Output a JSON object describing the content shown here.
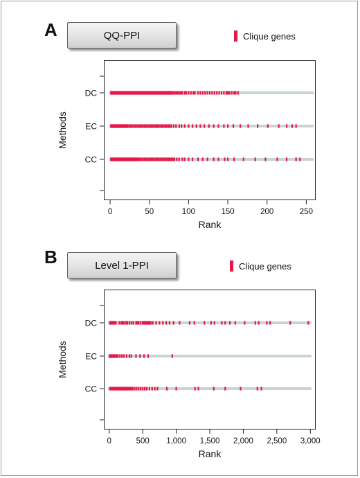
{
  "colors": {
    "clique_mark": "#e8174a",
    "track": "#c9d3d1",
    "axis": "#222222"
  },
  "legend_icon": "red-bar-swatch",
  "chart_data": [
    {
      "type": "scatter",
      "panel_label": "A",
      "title": "QQ-PPI",
      "legend_label": "Clique genes",
      "xlabel": "Rank",
      "ylabel": "Methods",
      "categories": [
        "DC",
        "EC",
        "CC"
      ],
      "xlim": [
        -8,
        262
      ],
      "xticks": [
        0,
        50,
        100,
        150,
        200,
        250
      ],
      "xtick_labels": [
        "0",
        "50",
        "100",
        "150",
        "200",
        "250"
      ],
      "track_range": [
        0,
        258
      ],
      "series": [
        {
          "name": "DC",
          "x": [
            1,
            2,
            3,
            4,
            5,
            6,
            7,
            8,
            9,
            10,
            11,
            12,
            13,
            14,
            15,
            16,
            17,
            18,
            19,
            20,
            21,
            22,
            23,
            24,
            25,
            26,
            27,
            28,
            29,
            30,
            31,
            32,
            33,
            34,
            35,
            36,
            37,
            38,
            39,
            40,
            41,
            42,
            43,
            44,
            45,
            46,
            47,
            48,
            49,
            50,
            51,
            52,
            53,
            54,
            55,
            56,
            57,
            58,
            59,
            60,
            61,
            62,
            63,
            64,
            65,
            66,
            67,
            68,
            69,
            70,
            71,
            72,
            73,
            74,
            75,
            76,
            77,
            78,
            80,
            82,
            84,
            86,
            88,
            90,
            92,
            95,
            97,
            100,
            103,
            106,
            108,
            112,
            115,
            118,
            121,
            124,
            127,
            130,
            133,
            136,
            139,
            142,
            145,
            148,
            150,
            152,
            155,
            158,
            160,
            163
          ]
        },
        {
          "name": "EC",
          "x": [
            1,
            2,
            3,
            4,
            5,
            6,
            7,
            8,
            9,
            10,
            11,
            12,
            13,
            14,
            15,
            16,
            17,
            18,
            19,
            20,
            21,
            22,
            24,
            26,
            28,
            30,
            32,
            34,
            36,
            38,
            40,
            42,
            44,
            46,
            48,
            50,
            52,
            54,
            56,
            58,
            60,
            62,
            64,
            66,
            68,
            70,
            72,
            74,
            76,
            78,
            81,
            84,
            88,
            91,
            95,
            100,
            105,
            110,
            115,
            120,
            126,
            132,
            138,
            145,
            150,
            157,
            166,
            176,
            188,
            201,
            215,
            225,
            232,
            237
          ]
        },
        {
          "name": "CC",
          "x": [
            1,
            2,
            3,
            4,
            5,
            6,
            7,
            8,
            9,
            10,
            11,
            12,
            13,
            14,
            15,
            16,
            17,
            18,
            19,
            20,
            21,
            22,
            23,
            24,
            25,
            26,
            27,
            28,
            29,
            30,
            31,
            32,
            33,
            34,
            35,
            36,
            38,
            40,
            42,
            44,
            46,
            48,
            50,
            52,
            54,
            56,
            58,
            60,
            62,
            64,
            66,
            68,
            70,
            72,
            74,
            76,
            78,
            80,
            82,
            85,
            88,
            92,
            95,
            100,
            105,
            112,
            118,
            124,
            132,
            138,
            146,
            150,
            158,
            170,
            185,
            198,
            213,
            225,
            237,
            242
          ]
        }
      ]
    },
    {
      "type": "scatter",
      "panel_label": "B",
      "title": "Level 1-PPI",
      "legend_label": "Clique genes",
      "xlabel": "Rank",
      "ylabel": "Methods",
      "categories": [
        "DC",
        "EC",
        "CC"
      ],
      "xlim": [
        -80,
        3080
      ],
      "xticks": [
        0,
        500,
        1000,
        1500,
        2000,
        2500,
        3000
      ],
      "xtick_labels": [
        "0",
        "500",
        "1,000",
        "1,500",
        "2,000",
        "2,500",
        "3,000"
      ],
      "track_range": [
        0,
        3000
      ],
      "series": [
        {
          "name": "DC",
          "x": [
            10,
            25,
            40,
            60,
            80,
            100,
            150,
            180,
            200,
            220,
            250,
            270,
            300,
            330,
            360,
            400,
            420,
            440,
            470,
            500,
            520,
            540,
            560,
            580,
            600,
            620,
            650,
            700,
            750,
            800,
            850,
            900,
            960,
            1050,
            1200,
            1270,
            1420,
            1520,
            1570,
            1680,
            1730,
            1800,
            1880,
            2020,
            2180,
            2230,
            2350,
            2400,
            2700,
            2970
          ]
        },
        {
          "name": "EC",
          "x": [
            5,
            20,
            35,
            50,
            70,
            90,
            110,
            130,
            160,
            190,
            220,
            260,
            300,
            330,
            400,
            460,
            520,
            580,
            940
          ]
        },
        {
          "name": "CC",
          "x": [
            10,
            30,
            50,
            70,
            90,
            110,
            130,
            150,
            170,
            190,
            210,
            230,
            250,
            270,
            290,
            310,
            330,
            350,
            380,
            410,
            440,
            470,
            500,
            530,
            560,
            600,
            640,
            680,
            720,
            860,
            1000,
            1280,
            1330,
            1560,
            1730,
            1960,
            2210,
            2270
          ]
        }
      ]
    }
  ]
}
